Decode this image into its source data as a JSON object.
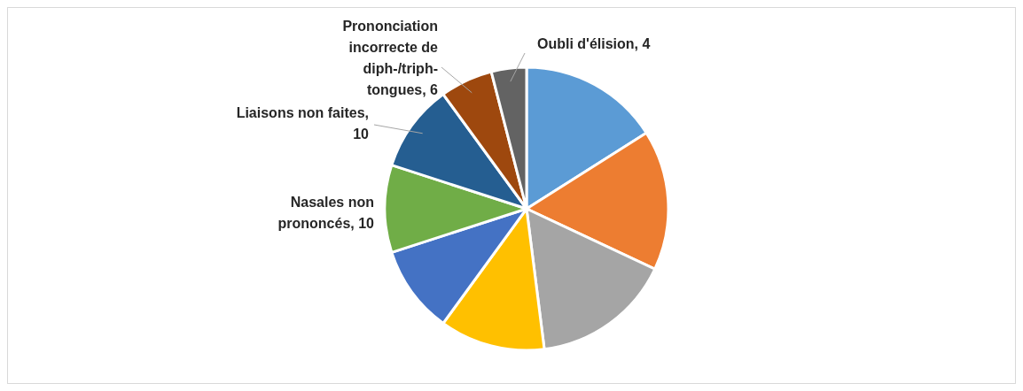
{
  "chart_data": {
    "type": "pie",
    "categories": [
      null,
      null,
      null,
      null,
      null,
      "Nasales non prononcés, 10",
      "Liaisons non faites, 10",
      "Prononciation incorrecte de diph-/triph-tongues, 6",
      "Oubli d'élision, 4"
    ],
    "values": [
      16,
      16,
      16,
      12,
      10,
      10,
      10,
      6,
      4
    ],
    "colors": [
      "#5b9bd5",
      "#ed7d31",
      "#a5a5a5",
      "#ffc000",
      "#4472c4",
      "#70ad47",
      "#255e91",
      "#9e480e",
      "#636363"
    ]
  }
}
